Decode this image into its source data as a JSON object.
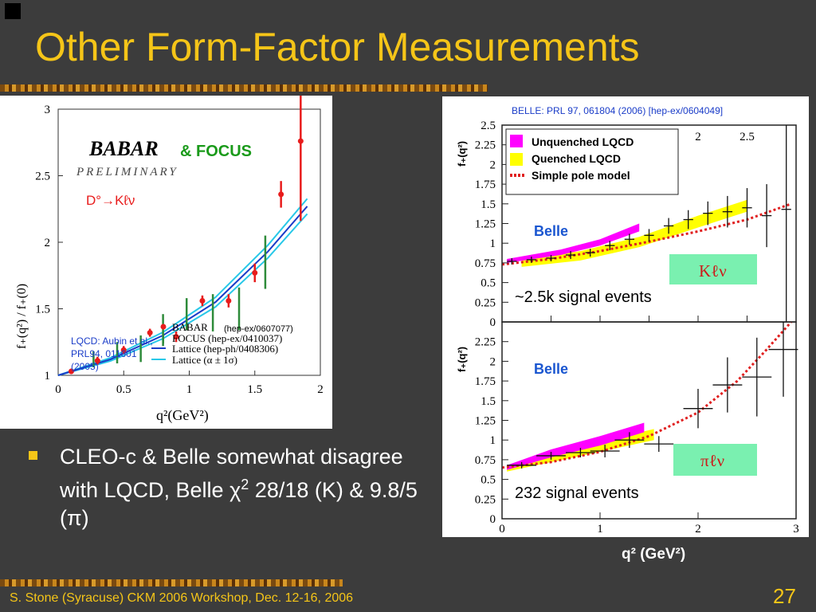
{
  "slide": {
    "title": "Other Form-Factor Measurements",
    "bullet": "CLEO-c & Belle somewhat disagree with LQCD, Belle ",
    "bullet_chi": "χ",
    "bullet_exp": "2",
    "bullet_line2": "28/18 (K) & 9.8/5 (",
    "bullet_pi": "π",
    "bullet_close": ")",
    "x_axis_title": "q² (GeV²)",
    "footer": "S. Stone (Syracuse) CKM 2006 Workshop, Dec. 12-16, 2006",
    "page_number": "27"
  },
  "colors": {
    "title": "#f5c518",
    "babar_red": "#e81c1c",
    "focus_green": "#2e8b3a",
    "lattice_blue": "#1a3cc8",
    "lattice_cyan": "#28c8e8",
    "belle_magenta": "#ff00ff",
    "belle_yellow": "#ffff00",
    "pole_red": "#e02020",
    "label_blue": "#1a56d0",
    "box_green": "#7af0b0"
  },
  "chart_data": [
    {
      "type": "scatter",
      "name": "babar",
      "xlabel": "q²(GeV²)",
      "ylabel": "f₊(q²) / f₊(0)",
      "xlim": [
        0,
        2
      ],
      "ylim": [
        1,
        3
      ],
      "xticks": [
        "0",
        "0.5",
        "1",
        "1.5",
        "2"
      ],
      "yticks": [
        "1",
        "1.5",
        "2",
        "2.5",
        "3"
      ],
      "logo": "BABAR",
      "logo_sub": "PRELIMINARY",
      "focus_label": "& FOCUS",
      "decay_label": "D°→Kℓν",
      "legend": [
        {
          "label": "BABAR",
          "extra": "(hep-ex/0607077)"
        },
        {
          "label": "FOCUS (hep-ex/0410037)"
        },
        {
          "label": "Lattice (hep-ph/0408306)"
        },
        {
          "label": "Lattice (α ± 1σ)"
        }
      ],
      "lqcd_ref": [
        "LQCD: Aubin et al.,",
        "PRL94, 011601",
        "(2005)"
      ],
      "babar_points": [
        {
          "x": 0.1,
          "y": 1.03,
          "err": 0.02
        },
        {
          "x": 0.3,
          "y": 1.11,
          "err": 0.03
        },
        {
          "x": 0.5,
          "y": 1.19,
          "err": 0.03
        },
        {
          "x": 0.7,
          "y": 1.32,
          "err": 0.03
        },
        {
          "x": 0.9,
          "y": 1.29,
          "err": 0.04
        },
        {
          "x": 1.1,
          "y": 1.56,
          "err": 0.04
        },
        {
          "x": 1.3,
          "y": 1.56,
          "err": 0.05
        },
        {
          "x": 1.5,
          "y": 1.77,
          "err": 0.07
        },
        {
          "x": 1.7,
          "y": 2.36,
          "err": 0.1
        },
        {
          "x": 1.85,
          "y": 2.76,
          "err": 0.6
        }
      ],
      "focus_points": [
        {
          "x": 0.27,
          "y": 1.12,
          "err": 0.06
        },
        {
          "x": 0.45,
          "y": 1.17,
          "err": 0.08
        },
        {
          "x": 0.63,
          "y": 1.2,
          "err": 0.1
        },
        {
          "x": 0.8,
          "y": 1.34,
          "err": 0.12
        },
        {
          "x": 0.98,
          "y": 1.46,
          "err": 0.12
        },
        {
          "x": 1.18,
          "y": 1.47,
          "err": 0.14
        },
        {
          "x": 1.38,
          "y": 1.5,
          "err": 0.16
        },
        {
          "x": 1.58,
          "y": 1.85,
          "err": 0.2
        }
      ],
      "lattice_curve": [
        {
          "x": 0,
          "y": 1.0
        },
        {
          "x": 0.4,
          "y": 1.12
        },
        {
          "x": 0.8,
          "y": 1.3
        },
        {
          "x": 1.2,
          "y": 1.55
        },
        {
          "x": 1.6,
          "y": 1.93
        },
        {
          "x": 1.9,
          "y": 2.27
        }
      ]
    },
    {
      "type": "scatter",
      "name": "belle-kaon",
      "reference": "BELLE: PRL 97, 061804 (2006) [hep-ex/0604049]",
      "ylabel": "f₊(q²)",
      "xlim": [
        0,
        3
      ],
      "ylim": [
        0,
        2.5
      ],
      "xticks": [
        "0.5",
        "1",
        "1.5",
        "2",
        "2.5"
      ],
      "yticks": [
        "0",
        "0.25",
        "0.5",
        "0.75",
        "1",
        "1.25",
        "1.5",
        "1.75",
        "2",
        "2.25",
        "2.5"
      ],
      "legend": [
        {
          "label": "Unquenched LQCD",
          "color": "#ff00ff"
        },
        {
          "label": "Quenched LQCD",
          "color": "#ffff00"
        },
        {
          "label": "Simple pole model",
          "color": "#e02020"
        }
      ],
      "experiment_label": "Belle",
      "channel": "Kℓν",
      "events": "~2.5k signal events",
      "unquenched_band": [
        {
          "x": 0.05,
          "lo": 0.75,
          "hi": 0.8
        },
        {
          "x": 0.6,
          "lo": 0.85,
          "hi": 0.92
        },
        {
          "x": 1.0,
          "lo": 0.97,
          "hi": 1.05
        },
        {
          "x": 1.4,
          "lo": 1.15,
          "hi": 1.25
        }
      ],
      "quenched_band": [
        {
          "x": 0.2,
          "lo": 0.7,
          "hi": 0.8
        },
        {
          "x": 0.8,
          "lo": 0.78,
          "hi": 0.9
        },
        {
          "x": 1.4,
          "lo": 0.95,
          "hi": 1.08
        },
        {
          "x": 2.0,
          "lo": 1.2,
          "hi": 1.35
        },
        {
          "x": 2.5,
          "lo": 1.4,
          "hi": 1.55
        }
      ],
      "pole_curve": [
        {
          "x": 0.0,
          "y": 0.73
        },
        {
          "x": 0.5,
          "y": 0.8
        },
        {
          "x": 1.0,
          "y": 0.9
        },
        {
          "x": 1.5,
          "y": 1.02
        },
        {
          "x": 2.0,
          "y": 1.15
        },
        {
          "x": 2.5,
          "y": 1.3
        },
        {
          "x": 2.95,
          "y": 1.5
        }
      ],
      "points": [
        {
          "x": 0.1,
          "y": 0.77,
          "ex": 0.05,
          "ey": 0.04
        },
        {
          "x": 0.3,
          "y": 0.79,
          "ex": 0.05,
          "ey": 0.04
        },
        {
          "x": 0.5,
          "y": 0.81,
          "ex": 0.05,
          "ey": 0.04
        },
        {
          "x": 0.7,
          "y": 0.85,
          "ex": 0.05,
          "ey": 0.05
        },
        {
          "x": 0.9,
          "y": 0.88,
          "ex": 0.05,
          "ey": 0.05
        },
        {
          "x": 1.1,
          "y": 0.97,
          "ex": 0.05,
          "ey": 0.06
        },
        {
          "x": 1.3,
          "y": 1.05,
          "ex": 0.05,
          "ey": 0.07
        },
        {
          "x": 1.5,
          "y": 1.1,
          "ex": 0.05,
          "ey": 0.08
        },
        {
          "x": 1.7,
          "y": 1.22,
          "ex": 0.05,
          "ey": 0.1
        },
        {
          "x": 1.9,
          "y": 1.3,
          "ex": 0.05,
          "ey": 0.12
        },
        {
          "x": 2.1,
          "y": 1.38,
          "ex": 0.05,
          "ey": 0.15
        },
        {
          "x": 2.3,
          "y": 1.4,
          "ex": 0.05,
          "ey": 0.2
        },
        {
          "x": 2.5,
          "y": 1.45,
          "ex": 0.05,
          "ey": 0.25
        },
        {
          "x": 2.7,
          "y": 1.35,
          "ex": 0.05,
          "ey": 0.4
        },
        {
          "x": 2.9,
          "y": 1.43,
          "ex": 0.05,
          "ey": 1.5
        }
      ]
    },
    {
      "type": "scatter",
      "name": "belle-pion",
      "ylabel": "f₊(q²)",
      "xlim": [
        0,
        3
      ],
      "ylim": [
        0,
        2.5
      ],
      "xticks": [
        "0",
        "1",
        "2",
        "3"
      ],
      "yticks": [
        "0",
        "0.25",
        "0.5",
        "0.75",
        "1",
        "1.25",
        "1.5",
        "1.75",
        "2",
        "2.25"
      ],
      "experiment_label": "Belle",
      "channel": "πℓν",
      "events": "232 signal events",
      "unquenched_band": [
        {
          "x": 0.05,
          "lo": 0.62,
          "hi": 0.68
        },
        {
          "x": 0.5,
          "lo": 0.78,
          "hi": 0.88
        },
        {
          "x": 1.0,
          "lo": 0.93,
          "hi": 1.05
        },
        {
          "x": 1.45,
          "lo": 1.1,
          "hi": 1.22
        }
      ],
      "quenched_band": [
        {
          "x": 0.05,
          "lo": 0.6,
          "hi": 0.66
        },
        {
          "x": 0.5,
          "lo": 0.72,
          "hi": 0.82
        },
        {
          "x": 1.0,
          "lo": 0.85,
          "hi": 0.98
        },
        {
          "x": 1.55,
          "lo": 1.0,
          "hi": 1.14
        }
      ],
      "pole_curve": [
        {
          "x": 0.0,
          "y": 0.65
        },
        {
          "x": 0.5,
          "y": 0.72
        },
        {
          "x": 1.0,
          "y": 0.85
        },
        {
          "x": 1.5,
          "y": 1.05
        },
        {
          "x": 2.0,
          "y": 1.35
        },
        {
          "x": 2.4,
          "y": 1.75
        },
        {
          "x": 2.7,
          "y": 2.15
        },
        {
          "x": 2.95,
          "y": 2.6
        }
      ],
      "points": [
        {
          "x": 0.2,
          "y": 0.68,
          "ex": 0.15,
          "ey": 0.04
        },
        {
          "x": 0.5,
          "y": 0.8,
          "ex": 0.15,
          "ey": 0.05
        },
        {
          "x": 0.8,
          "y": 0.84,
          "ex": 0.15,
          "ey": 0.06
        },
        {
          "x": 1.05,
          "y": 0.86,
          "ex": 0.15,
          "ey": 0.08
        },
        {
          "x": 1.3,
          "y": 1.0,
          "ex": 0.15,
          "ey": 0.1
        },
        {
          "x": 1.6,
          "y": 0.95,
          "ex": 0.15,
          "ey": 0.1
        },
        {
          "x": 2.0,
          "y": 1.4,
          "ex": 0.15,
          "ey": 0.25
        },
        {
          "x": 2.3,
          "y": 1.7,
          "ex": 0.15,
          "ey": 0.35
        },
        {
          "x": 2.6,
          "y": 1.8,
          "ex": 0.15,
          "ey": 0.5
        },
        {
          "x": 2.87,
          "y": 2.15,
          "ex": 0.15,
          "ey": 0.6
        }
      ]
    }
  ]
}
